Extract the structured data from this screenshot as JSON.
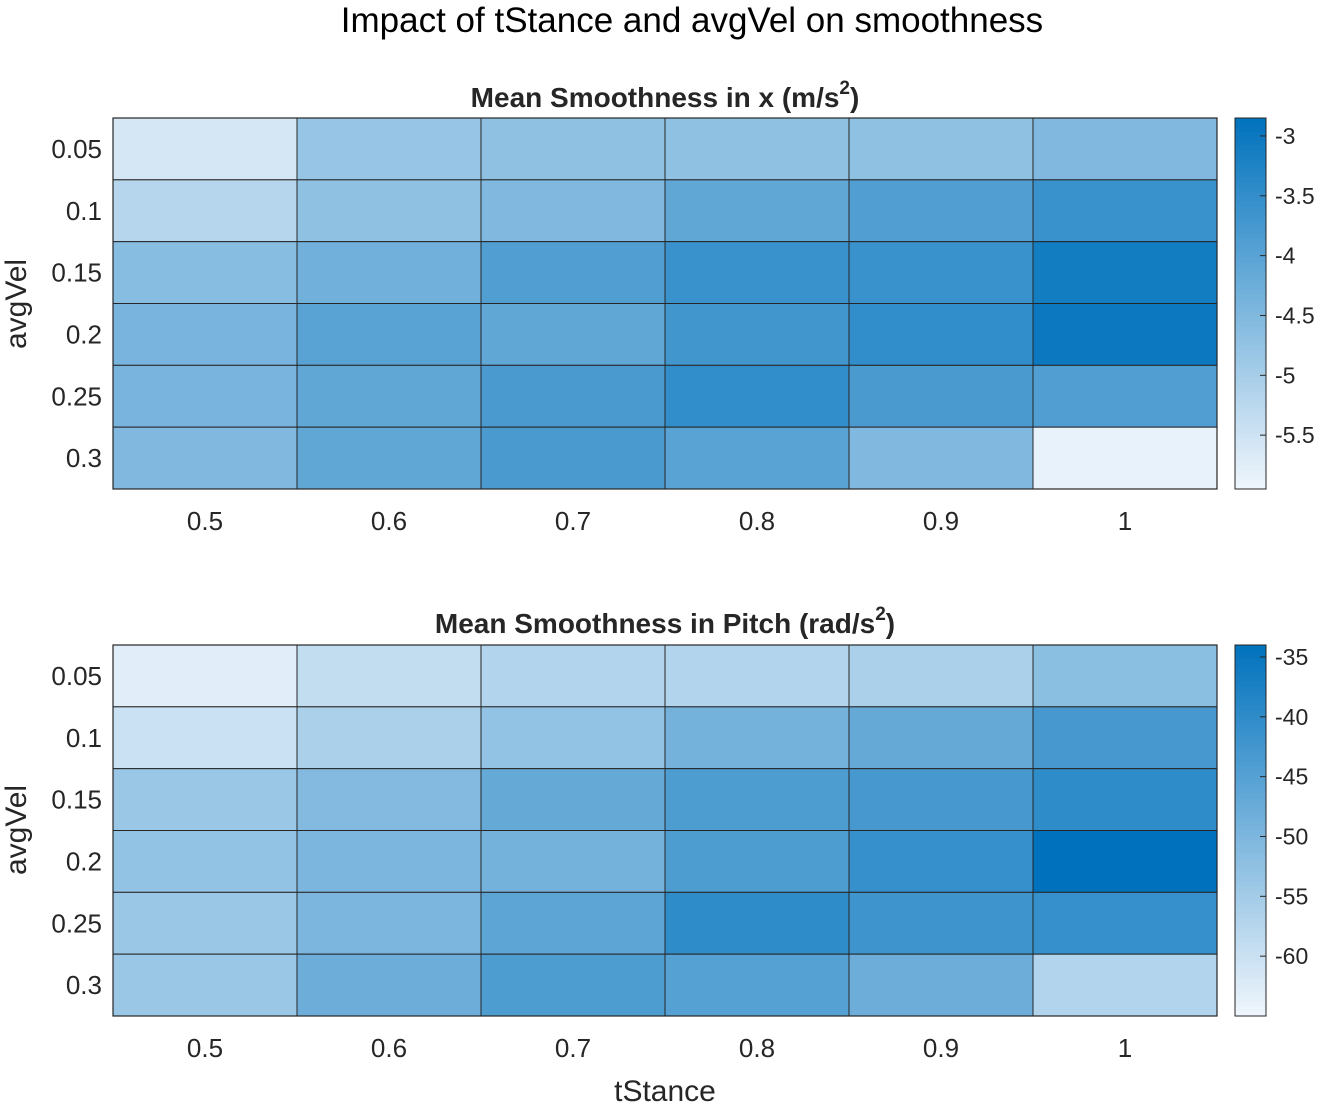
{
  "figure": {
    "title": "Impact of tStance and avgVel on smoothness",
    "xlabel": "tStance"
  },
  "colors": {
    "low": "#f0f6fc",
    "high": "#0072bd",
    "grid": "#262626",
    "text": "#262626"
  },
  "chart_data": [
    {
      "type": "heatmap",
      "title_main": "Mean Smoothness in x (m/s",
      "title_sup": "2",
      "title_end": ")",
      "xlabel": "",
      "ylabel": "avgVel",
      "x_categories": [
        "0.5",
        "0.6",
        "0.7",
        "0.8",
        "0.9",
        "1"
      ],
      "y_categories": [
        "0.05",
        "0.1",
        "0.15",
        "0.2",
        "0.25",
        "0.3"
      ],
      "values": [
        [
          -5.6,
          -4.8,
          -4.7,
          -4.7,
          -4.7,
          -4.5
        ],
        [
          -5.2,
          -4.7,
          -4.5,
          -4.1,
          -3.9,
          -3.6
        ],
        [
          -4.6,
          -4.3,
          -3.9,
          -3.6,
          -3.6,
          -3.1
        ],
        [
          -4.4,
          -4.0,
          -4.1,
          -3.7,
          -3.5,
          -3.0
        ],
        [
          -4.4,
          -4.1,
          -3.8,
          -3.5,
          -3.8,
          -3.9
        ],
        [
          -4.5,
          -4.1,
          -3.8,
          -4.0,
          -4.5,
          -5.85
        ]
      ],
      "colorbar": {
        "min": -5.95,
        "max": -2.85,
        "ticks": [
          "-3",
          "-3.5",
          "-4",
          "-4.5",
          "-5",
          "-5.5"
        ]
      }
    },
    {
      "type": "heatmap",
      "title_main": "Mean Smoothness in Pitch (rad/s",
      "title_sup": "2",
      "title_end": ")",
      "xlabel": "tStance",
      "ylabel": "avgVel",
      "x_categories": [
        "0.5",
        "0.6",
        "0.7",
        "0.8",
        "0.9",
        "1"
      ],
      "y_categories": [
        "0.05",
        "0.1",
        "0.15",
        "0.2",
        "0.25",
        "0.3"
      ],
      "values": [
        [
          -63,
          -59,
          -57,
          -57,
          -56,
          -52
        ],
        [
          -60,
          -56,
          -53,
          -49,
          -47,
          -43
        ],
        [
          -54,
          -51,
          -47,
          -44,
          -43,
          -40
        ],
        [
          -53,
          -50,
          -49,
          -44,
          -41,
          -34
        ],
        [
          -54,
          -50,
          -46,
          -40,
          -42,
          -41
        ],
        [
          -54,
          -48,
          -44,
          -45,
          -48,
          -57
        ]
      ],
      "colorbar": {
        "min": -65,
        "max": -34,
        "ticks": [
          "-35",
          "-40",
          "-45",
          "-50",
          "-55",
          "-60"
        ]
      }
    }
  ]
}
